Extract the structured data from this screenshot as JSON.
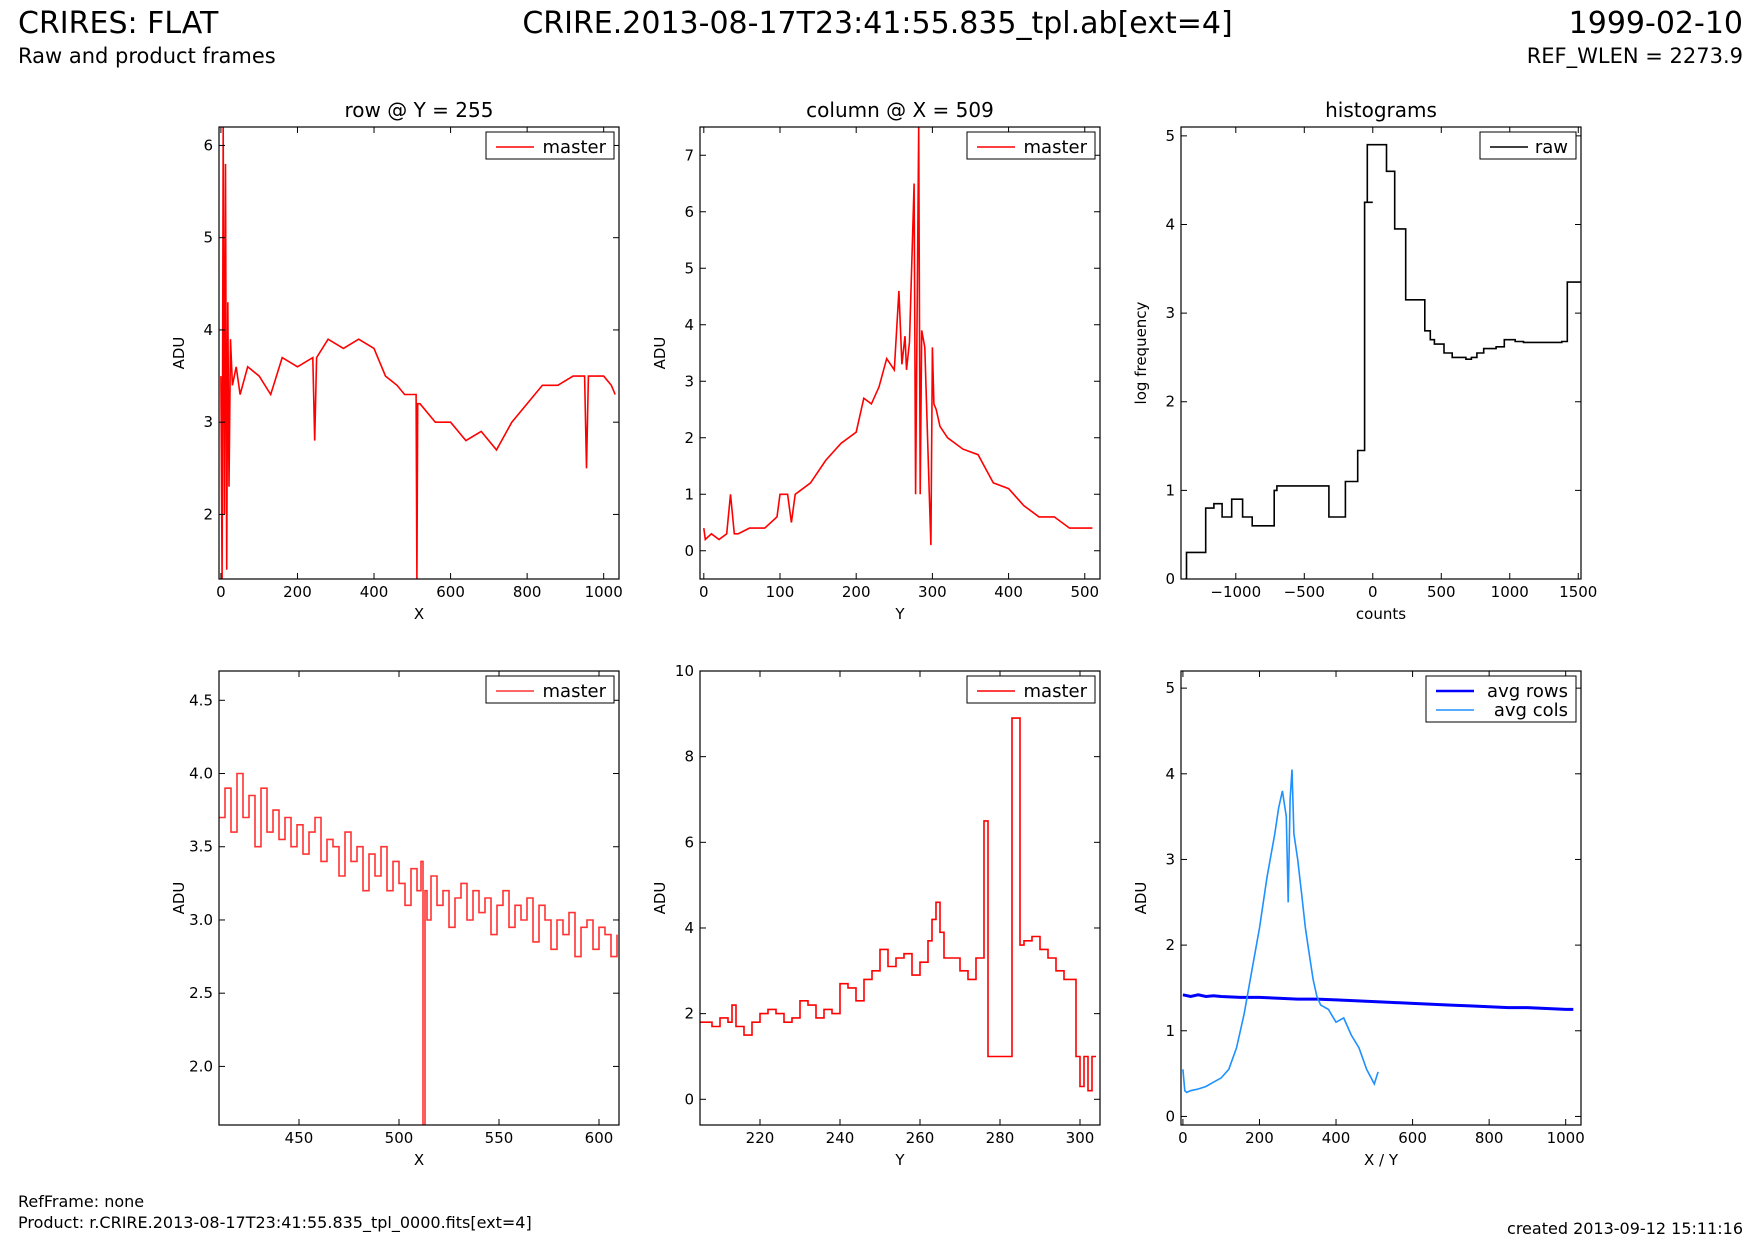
{
  "header": {
    "title_left": "CRIRES: FLAT",
    "subtitle_left": "Raw and product frames",
    "title_center": "CRIRE.2013-08-17T23:41:55.835_tpl.ab[ext=4]",
    "date_right": "1999-02-10",
    "ref_wlen": "REF_WLEN = 2273.9"
  },
  "footer": {
    "ref_frame": "RefFrame: none",
    "product": "Product: r.CRIRE.2013-08-17T23:41:55.835_tpl_0000.fits[ext=4]",
    "created": "created 2013-09-12 15:11:16"
  },
  "colors": {
    "red": "#ff0000",
    "light_red": "#ff3333",
    "blue": "#0000ff",
    "light_blue": "#1e90ff",
    "black": "#000000"
  },
  "chart_data": [
    {
      "type": "line",
      "title": "row @ Y = 255",
      "xlabel": "X",
      "ylabel": "ADU",
      "xlim": [
        -5,
        1040
      ],
      "ylim": [
        1.3,
        6.2
      ],
      "xticks": [
        0,
        200,
        400,
        600,
        800,
        1000
      ],
      "yticks": [
        2,
        3,
        4,
        5,
        6
      ],
      "legend": {
        "position": "top-right",
        "entries": [
          "master"
        ]
      },
      "series": [
        {
          "name": "master",
          "color": "#ff0000",
          "x": [
            0,
            3,
            6,
            9,
            12,
            15,
            18,
            21,
            25,
            30,
            40,
            50,
            70,
            100,
            130,
            160,
            200,
            240,
            245,
            250,
            280,
            320,
            360,
            400,
            430,
            460,
            480,
            500,
            510,
            512,
            514,
            520,
            560,
            600,
            640,
            680,
            720,
            760,
            800,
            840,
            880,
            920,
            950,
            955,
            960,
            1000,
            1020,
            1030
          ],
          "y": [
            3.5,
            1.3,
            6.2,
            2.0,
            5.8,
            1.4,
            4.3,
            2.3,
            3.9,
            3.4,
            3.6,
            3.3,
            3.6,
            3.5,
            3.3,
            3.7,
            3.6,
            3.7,
            2.8,
            3.7,
            3.9,
            3.8,
            3.9,
            3.8,
            3.5,
            3.4,
            3.3,
            3.3,
            3.3,
            1.3,
            3.2,
            3.2,
            3.0,
            3.0,
            2.8,
            2.9,
            2.7,
            3.0,
            3.2,
            3.4,
            3.4,
            3.5,
            3.5,
            2.5,
            3.5,
            3.5,
            3.4,
            3.3
          ]
        }
      ]
    },
    {
      "type": "line",
      "title": "column @ X = 509",
      "xlabel": "Y",
      "ylabel": "ADU",
      "xlim": [
        -5,
        520
      ],
      "ylim": [
        -0.5,
        7.5
      ],
      "xticks": [
        0,
        100,
        200,
        300,
        400,
        500
      ],
      "yticks": [
        0,
        1,
        2,
        3,
        4,
        5,
        6,
        7
      ],
      "legend": {
        "position": "top-right",
        "entries": [
          "master"
        ]
      },
      "series": [
        {
          "name": "master",
          "color": "#ff0000",
          "x": [
            0,
            2,
            10,
            20,
            30,
            35,
            40,
            45,
            60,
            80,
            96,
            100,
            110,
            115,
            120,
            140,
            160,
            180,
            200,
            210,
            220,
            230,
            240,
            250,
            256,
            260,
            264,
            266,
            270,
            276,
            278,
            282,
            284,
            286,
            290,
            296,
            298,
            300,
            302,
            305,
            310,
            320,
            340,
            360,
            380,
            400,
            420,
            440,
            460,
            480,
            500,
            510
          ],
          "y": [
            0.4,
            0.2,
            0.3,
            0.2,
            0.3,
            1.0,
            0.3,
            0.3,
            0.4,
            0.4,
            0.6,
            1.0,
            1.0,
            0.5,
            1.0,
            1.2,
            1.6,
            1.9,
            2.1,
            2.7,
            2.6,
            2.9,
            3.4,
            3.2,
            4.6,
            3.3,
            3.8,
            3.2,
            3.7,
            6.5,
            1.0,
            7.5,
            1.0,
            3.9,
            3.6,
            1.0,
            0.1,
            3.6,
            2.6,
            2.5,
            2.2,
            2.0,
            1.8,
            1.7,
            1.2,
            1.1,
            0.8,
            0.6,
            0.6,
            0.4,
            0.4,
            0.4
          ]
        }
      ]
    },
    {
      "type": "line",
      "title": "histograms",
      "xlabel": "counts",
      "ylabel": "log frequency",
      "xlim": [
        -1400,
        1520
      ],
      "ylim": [
        0,
        5.1
      ],
      "xticks": [
        -1000,
        -500,
        0,
        500,
        1000,
        1500
      ],
      "yticks": [
        0,
        1,
        2,
        3,
        4,
        5
      ],
      "step": true,
      "legend": {
        "position": "top-right",
        "entries": [
          "raw"
        ]
      },
      "series": [
        {
          "name": "raw",
          "color": "#000000",
          "x": [
            -1370,
            -1360,
            -1310,
            -1220,
            -1200,
            -1160,
            -1120,
            -1100,
            -1060,
            -1030,
            -990,
            -950,
            -900,
            -880,
            -720,
            -700,
            -550,
            -320,
            -250,
            -200,
            -150,
            -110,
            -90,
            -60,
            0,
            -40,
            20,
            100,
            120,
            150,
            160,
            200,
            240,
            280,
            380,
            420,
            450,
            520,
            580,
            600,
            680,
            720,
            760,
            810,
            900,
            960,
            1040,
            1100,
            1380,
            1420,
            1520
          ],
          "y": [
            0,
            0.3,
            0.3,
            0.8,
            0.8,
            0.85,
            0.85,
            0.7,
            0.7,
            0.9,
            0.9,
            0.7,
            0.7,
            0.6,
            1.0,
            1.05,
            1.05,
            0.7,
            0.7,
            1.1,
            1.1,
            1.45,
            1.45,
            4.25,
            4.25,
            4.9,
            4.9,
            4.6,
            4.6,
            4.6,
            3.95,
            3.95,
            3.15,
            3.15,
            2.8,
            2.7,
            2.65,
            2.55,
            2.5,
            2.5,
            2.48,
            2.5,
            2.55,
            2.6,
            2.62,
            2.7,
            2.68,
            2.67,
            2.68,
            3.35,
            3.35
          ]
        }
      ]
    },
    {
      "type": "line",
      "title": "",
      "xlabel": "X",
      "ylabel": "ADU",
      "xlim": [
        410,
        610
      ],
      "ylim": [
        1.6,
        4.7
      ],
      "xticks": [
        450,
        500,
        550,
        600
      ],
      "yticks": [
        2.0,
        2.5,
        3.0,
        3.5,
        4.0,
        4.5
      ],
      "step": true,
      "legend": {
        "position": "top-right",
        "entries": [
          "master"
        ]
      },
      "series": [
        {
          "name": "master",
          "color": "#ff3333",
          "x": [
            410,
            413,
            416,
            419,
            422,
            425,
            428,
            431,
            434,
            437,
            440,
            443,
            446,
            449,
            452,
            455,
            458,
            461,
            464,
            467,
            470,
            473,
            476,
            479,
            482,
            485,
            488,
            491,
            494,
            497,
            500,
            503,
            506,
            509,
            511,
            512,
            513,
            514,
            516,
            519,
            522,
            525,
            528,
            531,
            534,
            537,
            540,
            543,
            546,
            549,
            552,
            555,
            558,
            561,
            564,
            567,
            570,
            573,
            576,
            579,
            582,
            585,
            588,
            591,
            594,
            597,
            600,
            603,
            606,
            609
          ],
          "y": [
            3.7,
            3.9,
            3.6,
            4.0,
            3.7,
            3.85,
            3.5,
            3.9,
            3.6,
            3.75,
            3.55,
            3.7,
            3.5,
            3.65,
            3.45,
            3.6,
            3.7,
            3.4,
            3.55,
            3.5,
            3.3,
            3.6,
            3.4,
            3.5,
            3.2,
            3.45,
            3.3,
            3.5,
            3.2,
            3.4,
            3.25,
            3.1,
            3.35,
            3.2,
            3.4,
            1.6,
            3.2,
            3.0,
            3.3,
            3.1,
            3.2,
            2.95,
            3.15,
            3.25,
            3.0,
            3.2,
            3.05,
            3.15,
            2.9,
            3.1,
            3.2,
            2.95,
            3.1,
            3.0,
            3.15,
            2.85,
            3.1,
            3.0,
            2.8,
            3.0,
            2.9,
            3.05,
            2.75,
            2.95,
            3.0,
            2.8,
            2.95,
            2.9,
            2.75,
            2.9
          ]
        }
      ]
    },
    {
      "type": "line",
      "title": "",
      "xlabel": "Y",
      "ylabel": "ADU",
      "xlim": [
        205,
        305
      ],
      "ylim": [
        -0.6,
        10
      ],
      "xticks": [
        220,
        240,
        260,
        280,
        300
      ],
      "yticks": [
        0,
        2,
        4,
        6,
        8,
        10
      ],
      "step": true,
      "legend": {
        "position": "top-right",
        "entries": [
          "master"
        ]
      },
      "series": [
        {
          "name": "master",
          "color": "#ff0000",
          "x": [
            205,
            208,
            210,
            212,
            213,
            214,
            216,
            218,
            220,
            222,
            224,
            226,
            228,
            230,
            232,
            234,
            236,
            238,
            240,
            242,
            244,
            246,
            248,
            250,
            252,
            254,
            256,
            258,
            260,
            262,
            263,
            264,
            265,
            266,
            268,
            270,
            272,
            274,
            276,
            277,
            278,
            280,
            282,
            283,
            284,
            285,
            286,
            288,
            290,
            292,
            294,
            296,
            298,
            299,
            300,
            301,
            302,
            303,
            304
          ],
          "y": [
            1.8,
            1.7,
            1.9,
            1.8,
            2.2,
            1.7,
            1.5,
            1.8,
            2.0,
            2.1,
            2.0,
            1.8,
            1.9,
            2.3,
            2.2,
            1.9,
            2.1,
            2.0,
            2.7,
            2.6,
            2.3,
            2.8,
            3.0,
            3.5,
            3.1,
            3.3,
            3.4,
            2.9,
            3.2,
            3.7,
            4.2,
            4.6,
            3.9,
            3.3,
            3.3,
            3.0,
            2.8,
            3.3,
            6.5,
            1.0,
            1.0,
            1.0,
            1.0,
            8.9,
            8.9,
            3.6,
            3.7,
            3.8,
            3.5,
            3.3,
            3.0,
            2.8,
            2.8,
            1.0,
            0.3,
            1.0,
            0.2,
            1.0,
            1.0
          ]
        }
      ]
    },
    {
      "type": "line",
      "title": "",
      "xlabel": "X / Y",
      "ylabel": "ADU",
      "xlim": [
        -5,
        1040
      ],
      "ylim": [
        -0.1,
        5.2
      ],
      "xticks": [
        0,
        200,
        400,
        600,
        800,
        1000
      ],
      "yticks": [
        0,
        1,
        2,
        3,
        4,
        5
      ],
      "legend": {
        "position": "top-right",
        "entries": [
          "avg rows",
          "avg cols"
        ]
      },
      "series": [
        {
          "name": "avg rows",
          "color": "#0000ff",
          "x": [
            0,
            20,
            40,
            60,
            80,
            100,
            150,
            200,
            250,
            300,
            350,
            400,
            450,
            500,
            550,
            600,
            650,
            700,
            750,
            800,
            850,
            900,
            950,
            1000,
            1020
          ],
          "y": [
            1.42,
            1.4,
            1.42,
            1.4,
            1.41,
            1.4,
            1.39,
            1.39,
            1.38,
            1.37,
            1.37,
            1.36,
            1.35,
            1.34,
            1.33,
            1.32,
            1.31,
            1.3,
            1.29,
            1.28,
            1.27,
            1.27,
            1.26,
            1.25,
            1.25
          ]
        },
        {
          "name": "avg cols",
          "color": "#1e90ff",
          "x": [
            0,
            5,
            10,
            20,
            40,
            60,
            80,
            100,
            120,
            140,
            160,
            180,
            200,
            220,
            240,
            250,
            260,
            270,
            275,
            280,
            285,
            290,
            300,
            310,
            320,
            330,
            340,
            350,
            360,
            380,
            400,
            420,
            440,
            460,
            480,
            500,
            510
          ],
          "y": [
            0.55,
            0.3,
            0.28,
            0.3,
            0.32,
            0.35,
            0.4,
            0.45,
            0.55,
            0.8,
            1.2,
            1.7,
            2.2,
            2.8,
            3.3,
            3.6,
            3.8,
            3.5,
            2.5,
            3.7,
            4.05,
            3.3,
            3.0,
            2.6,
            2.2,
            1.9,
            1.6,
            1.4,
            1.3,
            1.25,
            1.1,
            1.15,
            0.95,
            0.8,
            0.55,
            0.38,
            0.52
          ]
        }
      ]
    }
  ]
}
